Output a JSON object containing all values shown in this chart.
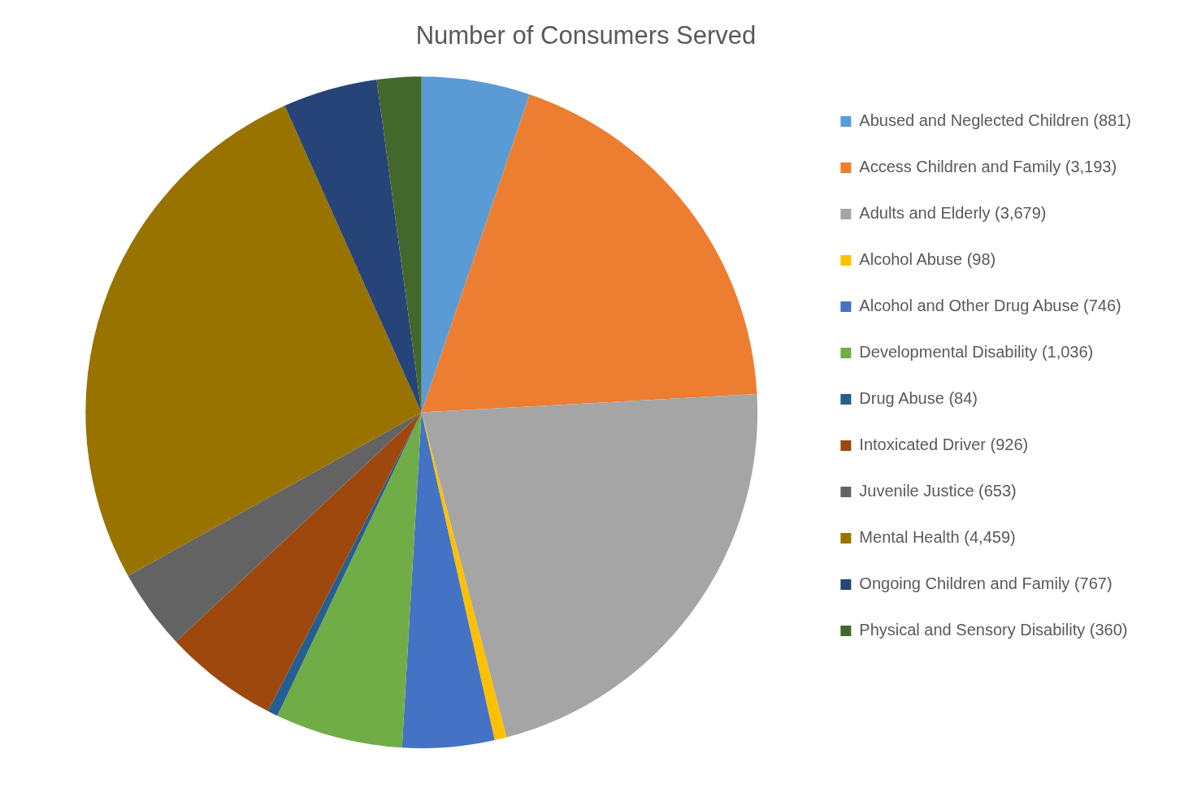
{
  "chart_data": {
    "type": "pie",
    "title": "Number of Consumers Served",
    "legend": "right",
    "categories": [
      "Abused and Neglected Children (881)",
      "Access Children and Family (3,193)",
      "Adults and Elderly (3,679)",
      "Alcohol Abuse (98)",
      "Alcohol and Other Drug Abuse (746)",
      "Developmental Disability (1,036)",
      "Drug Abuse (84)",
      "Intoxicated Driver (926)",
      "Juvenile Justice (653)",
      "Mental Health (4,459)",
      "Ongoing Children and Family (767)",
      "Physical and Sensory Disability (360)"
    ],
    "values": [
      881,
      3193,
      3679,
      98,
      746,
      1036,
      84,
      926,
      653,
      4459,
      767,
      360
    ],
    "colors": [
      "#5b9bd5",
      "#ed7d31",
      "#a5a5a5",
      "#ffc000",
      "#4472c4",
      "#70ad47",
      "#255e91",
      "#9e480e",
      "#636363",
      "#997300",
      "#264478",
      "#43682b"
    ]
  }
}
